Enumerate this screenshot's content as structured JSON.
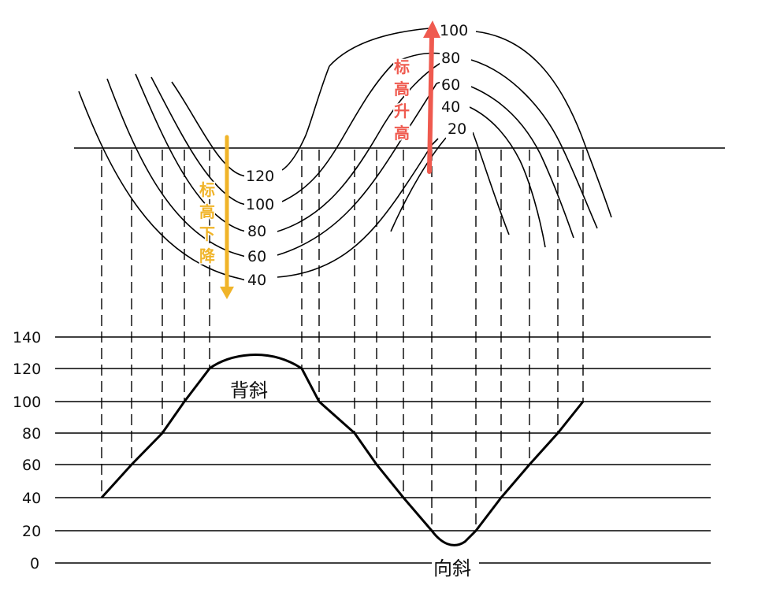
{
  "diagram": {
    "contour_labels_left": [
      "120",
      "100",
      "80",
      "60",
      "40"
    ],
    "contour_labels_right": [
      "100",
      "80",
      "60",
      "40",
      "20"
    ],
    "arrow_down": {
      "text": [
        "标",
        "高",
        "下",
        "降"
      ],
      "color": "#f0b429"
    },
    "arrow_up": {
      "text": [
        "标",
        "高",
        "升",
        "高"
      ],
      "color": "#ef5a4f"
    },
    "profile": {
      "y_ticks": [
        "140",
        "120",
        "100",
        "80",
        "60",
        "40",
        "20",
        "0"
      ],
      "anticline_label": "背斜",
      "syncline_label": "向斜"
    }
  }
}
